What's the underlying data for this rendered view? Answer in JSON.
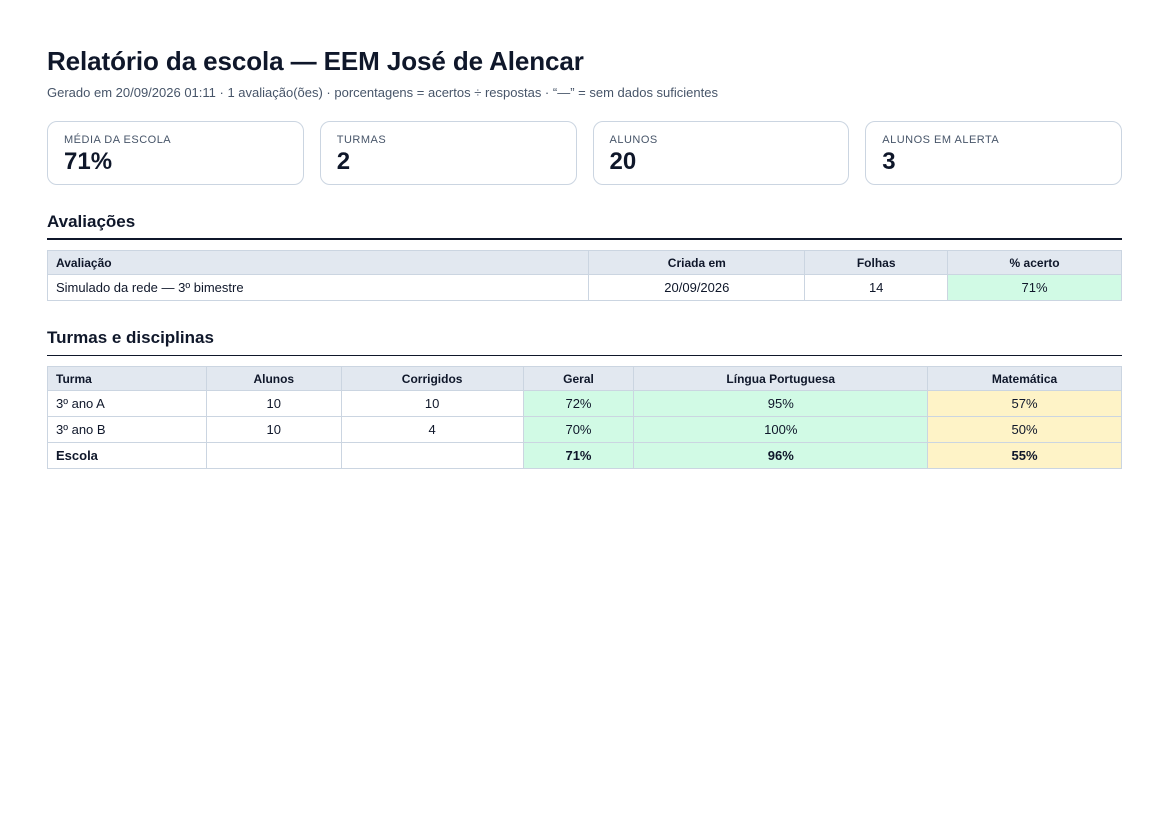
{
  "header": {
    "title": "Relatório da escola — EEM José de Alencar",
    "subtitle": "Gerado em 20/09/2026 01:11 · 1 avaliação(ões) · porcentagens = acertos ÷ respostas · “—” = sem dados suficientes"
  },
  "cards": [
    {
      "label": "MÉDIA DA ESCOLA",
      "value": "71%"
    },
    {
      "label": "TURMAS",
      "value": "2"
    },
    {
      "label": "ALUNOS",
      "value": "20"
    },
    {
      "label": "ALUNOS EM ALERTA",
      "value": "3"
    }
  ],
  "assessments": {
    "heading": "Avaliações",
    "columns": [
      "Avaliação",
      "Criada em",
      "Folhas",
      "% acerto"
    ],
    "rows": [
      {
        "name": "Simulado da rede — 3º bimestre",
        "created": "20/09/2026",
        "sheets": "14",
        "score": "71%"
      }
    ]
  },
  "classes": {
    "heading": "Turmas e disciplinas",
    "columns": [
      "Turma",
      "Alunos",
      "Corrigidos",
      "Geral",
      "Língua Portuguesa",
      "Matemática"
    ],
    "rows": [
      {
        "turma": "3º ano A",
        "alunos": "10",
        "corrigidos": "10",
        "geral": "72%",
        "portugues": "95%",
        "matematica": "57%"
      },
      {
        "turma": "3º ano B",
        "alunos": "10",
        "corrigidos": "4",
        "geral": "70%",
        "portugues": "100%",
        "matematica": "50%"
      }
    ],
    "total": {
      "turma": "Escola",
      "alunos": "",
      "corrigidos": "",
      "geral": "71%",
      "portugues": "96%",
      "matematica": "55%"
    }
  },
  "colors": {
    "good": "#d1fae5",
    "warning": "#fef3c7",
    "header_bg": "#e2e8f0",
    "border": "#cbd5e1"
  }
}
